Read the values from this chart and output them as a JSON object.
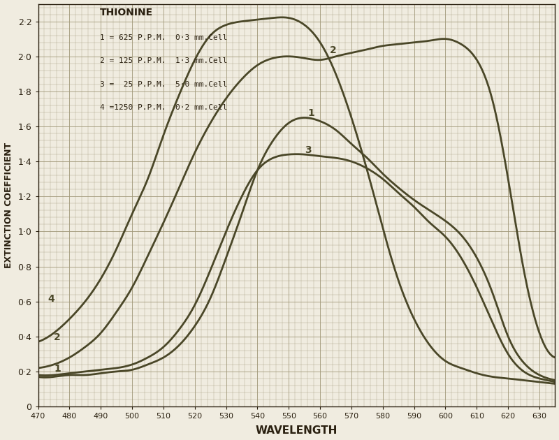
{
  "title": "THIONINE",
  "legend_lines": [
    "1 = 625 P.P.M.  0·3 mm.Cell",
    "2 = 125 P.P.M.  1·3 mm.Cell",
    "3 =  25 P.P.M.  5·0 mm.Cell",
    "4 =1250 P.P.M.  0·2 mm.Cell"
  ],
  "xlabel": "WAVELENGTH",
  "ylabel": "EXTINCTION COEFFICIENT",
  "xlim": [
    470,
    635
  ],
  "ylim": [
    0,
    2.3
  ],
  "xticks": [
    470,
    480,
    490,
    500,
    510,
    520,
    530,
    540,
    550,
    560,
    570,
    580,
    590,
    600,
    610,
    620,
    630
  ],
  "yticks": [
    0,
    0.2,
    0.4,
    0.6,
    0.8,
    1.0,
    1.2,
    1.4,
    1.6,
    1.8,
    2.0,
    2.2
  ],
  "curve_color": "#4a4728",
  "background_color": "#f0ece0",
  "grid_color": "#a09878",
  "curve1_x": [
    470,
    475,
    480,
    485,
    490,
    495,
    500,
    505,
    510,
    515,
    520,
    525,
    530,
    535,
    540,
    545,
    550,
    555,
    560,
    565,
    570,
    575,
    580,
    585,
    590,
    595,
    600,
    605,
    610,
    615,
    620,
    625,
    630,
    635
  ],
  "curve1_y": [
    0.17,
    0.17,
    0.18,
    0.18,
    0.19,
    0.2,
    0.21,
    0.24,
    0.28,
    0.35,
    0.46,
    0.62,
    0.85,
    1.1,
    1.35,
    1.52,
    1.62,
    1.65,
    1.63,
    1.58,
    1.5,
    1.42,
    1.33,
    1.25,
    1.18,
    1.12,
    1.06,
    0.98,
    0.85,
    0.65,
    0.4,
    0.25,
    0.18,
    0.15
  ],
  "curve2_x": [
    470,
    475,
    480,
    485,
    490,
    495,
    500,
    505,
    510,
    515,
    520,
    525,
    530,
    535,
    540,
    545,
    550,
    555,
    560,
    565,
    570,
    575,
    580,
    585,
    590,
    595,
    600,
    605,
    610,
    615,
    620,
    625,
    630,
    635
  ],
  "curve2_y": [
    0.22,
    0.24,
    0.28,
    0.34,
    0.42,
    0.54,
    0.68,
    0.86,
    1.05,
    1.25,
    1.45,
    1.62,
    1.76,
    1.87,
    1.95,
    1.99,
    2.0,
    1.99,
    1.98,
    2.0,
    2.02,
    2.04,
    2.06,
    2.07,
    2.08,
    2.09,
    2.1,
    2.07,
    1.98,
    1.75,
    1.3,
    0.78,
    0.42,
    0.28
  ],
  "curve3_x": [
    470,
    475,
    480,
    485,
    490,
    495,
    500,
    505,
    510,
    515,
    520,
    525,
    530,
    535,
    540,
    545,
    550,
    555,
    560,
    565,
    570,
    575,
    580,
    585,
    590,
    595,
    600,
    605,
    610,
    615,
    620,
    625,
    630,
    635
  ],
  "curve3_y": [
    0.18,
    0.18,
    0.19,
    0.2,
    0.21,
    0.22,
    0.24,
    0.28,
    0.34,
    0.44,
    0.58,
    0.78,
    1.0,
    1.2,
    1.35,
    1.42,
    1.44,
    1.44,
    1.43,
    1.42,
    1.4,
    1.36,
    1.3,
    1.22,
    1.14,
    1.05,
    0.97,
    0.85,
    0.68,
    0.48,
    0.3,
    0.2,
    0.16,
    0.14
  ],
  "curve4_x": [
    470,
    475,
    480,
    485,
    490,
    495,
    500,
    505,
    510,
    515,
    520,
    525,
    530,
    535,
    540,
    545,
    550,
    555,
    560,
    565,
    570,
    575,
    580,
    585,
    590,
    595,
    600,
    605,
    610,
    615,
    620,
    625,
    630,
    635
  ],
  "curve4_y": [
    0.37,
    0.42,
    0.5,
    0.6,
    0.73,
    0.9,
    1.1,
    1.3,
    1.55,
    1.78,
    1.98,
    2.12,
    2.18,
    2.2,
    2.21,
    2.22,
    2.22,
    2.18,
    2.08,
    1.9,
    1.65,
    1.35,
    1.02,
    0.72,
    0.5,
    0.35,
    0.26,
    0.22,
    0.19,
    0.17,
    0.16,
    0.15,
    0.14,
    0.13
  ]
}
